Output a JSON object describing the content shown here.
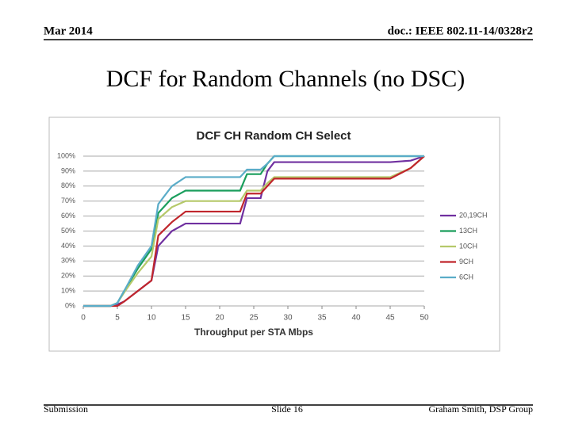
{
  "header": {
    "date": "Mar 2014",
    "doc": "doc.: IEEE 802.11-14/0328r2"
  },
  "slide_title": "DCF for Random Channels (no DSC)",
  "footer": {
    "left": "Submission",
    "center": "Slide 16",
    "right": "Graham Smith, DSP Group"
  },
  "chart_data": {
    "type": "line",
    "title": "DCF CH Random CH Select",
    "x_label": "Throughput per STA Mbps",
    "x": [
      0,
      4,
      5,
      6,
      8,
      10,
      11,
      13,
      15,
      18,
      22,
      23,
      24,
      26,
      27,
      28,
      30,
      40,
      45,
      48,
      50
    ],
    "series": [
      {
        "name": "20,19CH",
        "color": "#7030a0",
        "values": [
          0,
          0,
          1,
          3,
          10,
          17,
          40,
          50,
          55,
          55,
          55,
          55,
          72,
          72,
          90,
          96,
          96,
          96,
          96,
          97,
          100
        ]
      },
      {
        "name": "13CH",
        "color": "#1a9e5c",
        "values": [
          0,
          0,
          2,
          10,
          25,
          38,
          62,
          72,
          77,
          77,
          77,
          77,
          88,
          88,
          95,
          100,
          100,
          100,
          100,
          100,
          100
        ]
      },
      {
        "name": "10CH",
        "color": "#b5c96a",
        "values": [
          0,
          0,
          2,
          9,
          22,
          33,
          58,
          66,
          70,
          70,
          70,
          70,
          77,
          77,
          82,
          86,
          86,
          86,
          86,
          92,
          100
        ]
      },
      {
        "name": "9CH",
        "color": "#c0262c",
        "values": [
          0,
          0,
          0,
          3,
          10,
          17,
          47,
          56,
          63,
          63,
          63,
          63,
          75,
          75,
          80,
          85,
          85,
          85,
          85,
          92,
          100
        ]
      },
      {
        "name": "6CH",
        "color": "#5aacc8",
        "values": [
          0,
          0,
          2,
          10,
          27,
          40,
          68,
          80,
          86,
          86,
          86,
          86,
          91,
          91,
          95,
          100,
          100,
          100,
          100,
          100,
          100
        ]
      }
    ],
    "xlim": [
      0,
      50
    ],
    "xticks": [
      0,
      5,
      10,
      15,
      20,
      25,
      30,
      35,
      40,
      45,
      50
    ],
    "ylim": [
      0,
      100
    ],
    "yticks": [
      {
        "value": 0,
        "label": "0%"
      },
      {
        "value": 10,
        "label": "10%"
      },
      {
        "value": 20,
        "label": "20%"
      },
      {
        "value": 30,
        "label": "30%"
      },
      {
        "value": 40,
        "label": "40%"
      },
      {
        "value": 50,
        "label": "50%"
      },
      {
        "value": 60,
        "label": "60%"
      },
      {
        "value": 70,
        "label": "70%"
      },
      {
        "value": 80,
        "label": "80%"
      },
      {
        "value": 90,
        "label": "90%"
      },
      {
        "value": 100,
        "label": "100%"
      }
    ],
    "grid": true,
    "legend": "right"
  }
}
